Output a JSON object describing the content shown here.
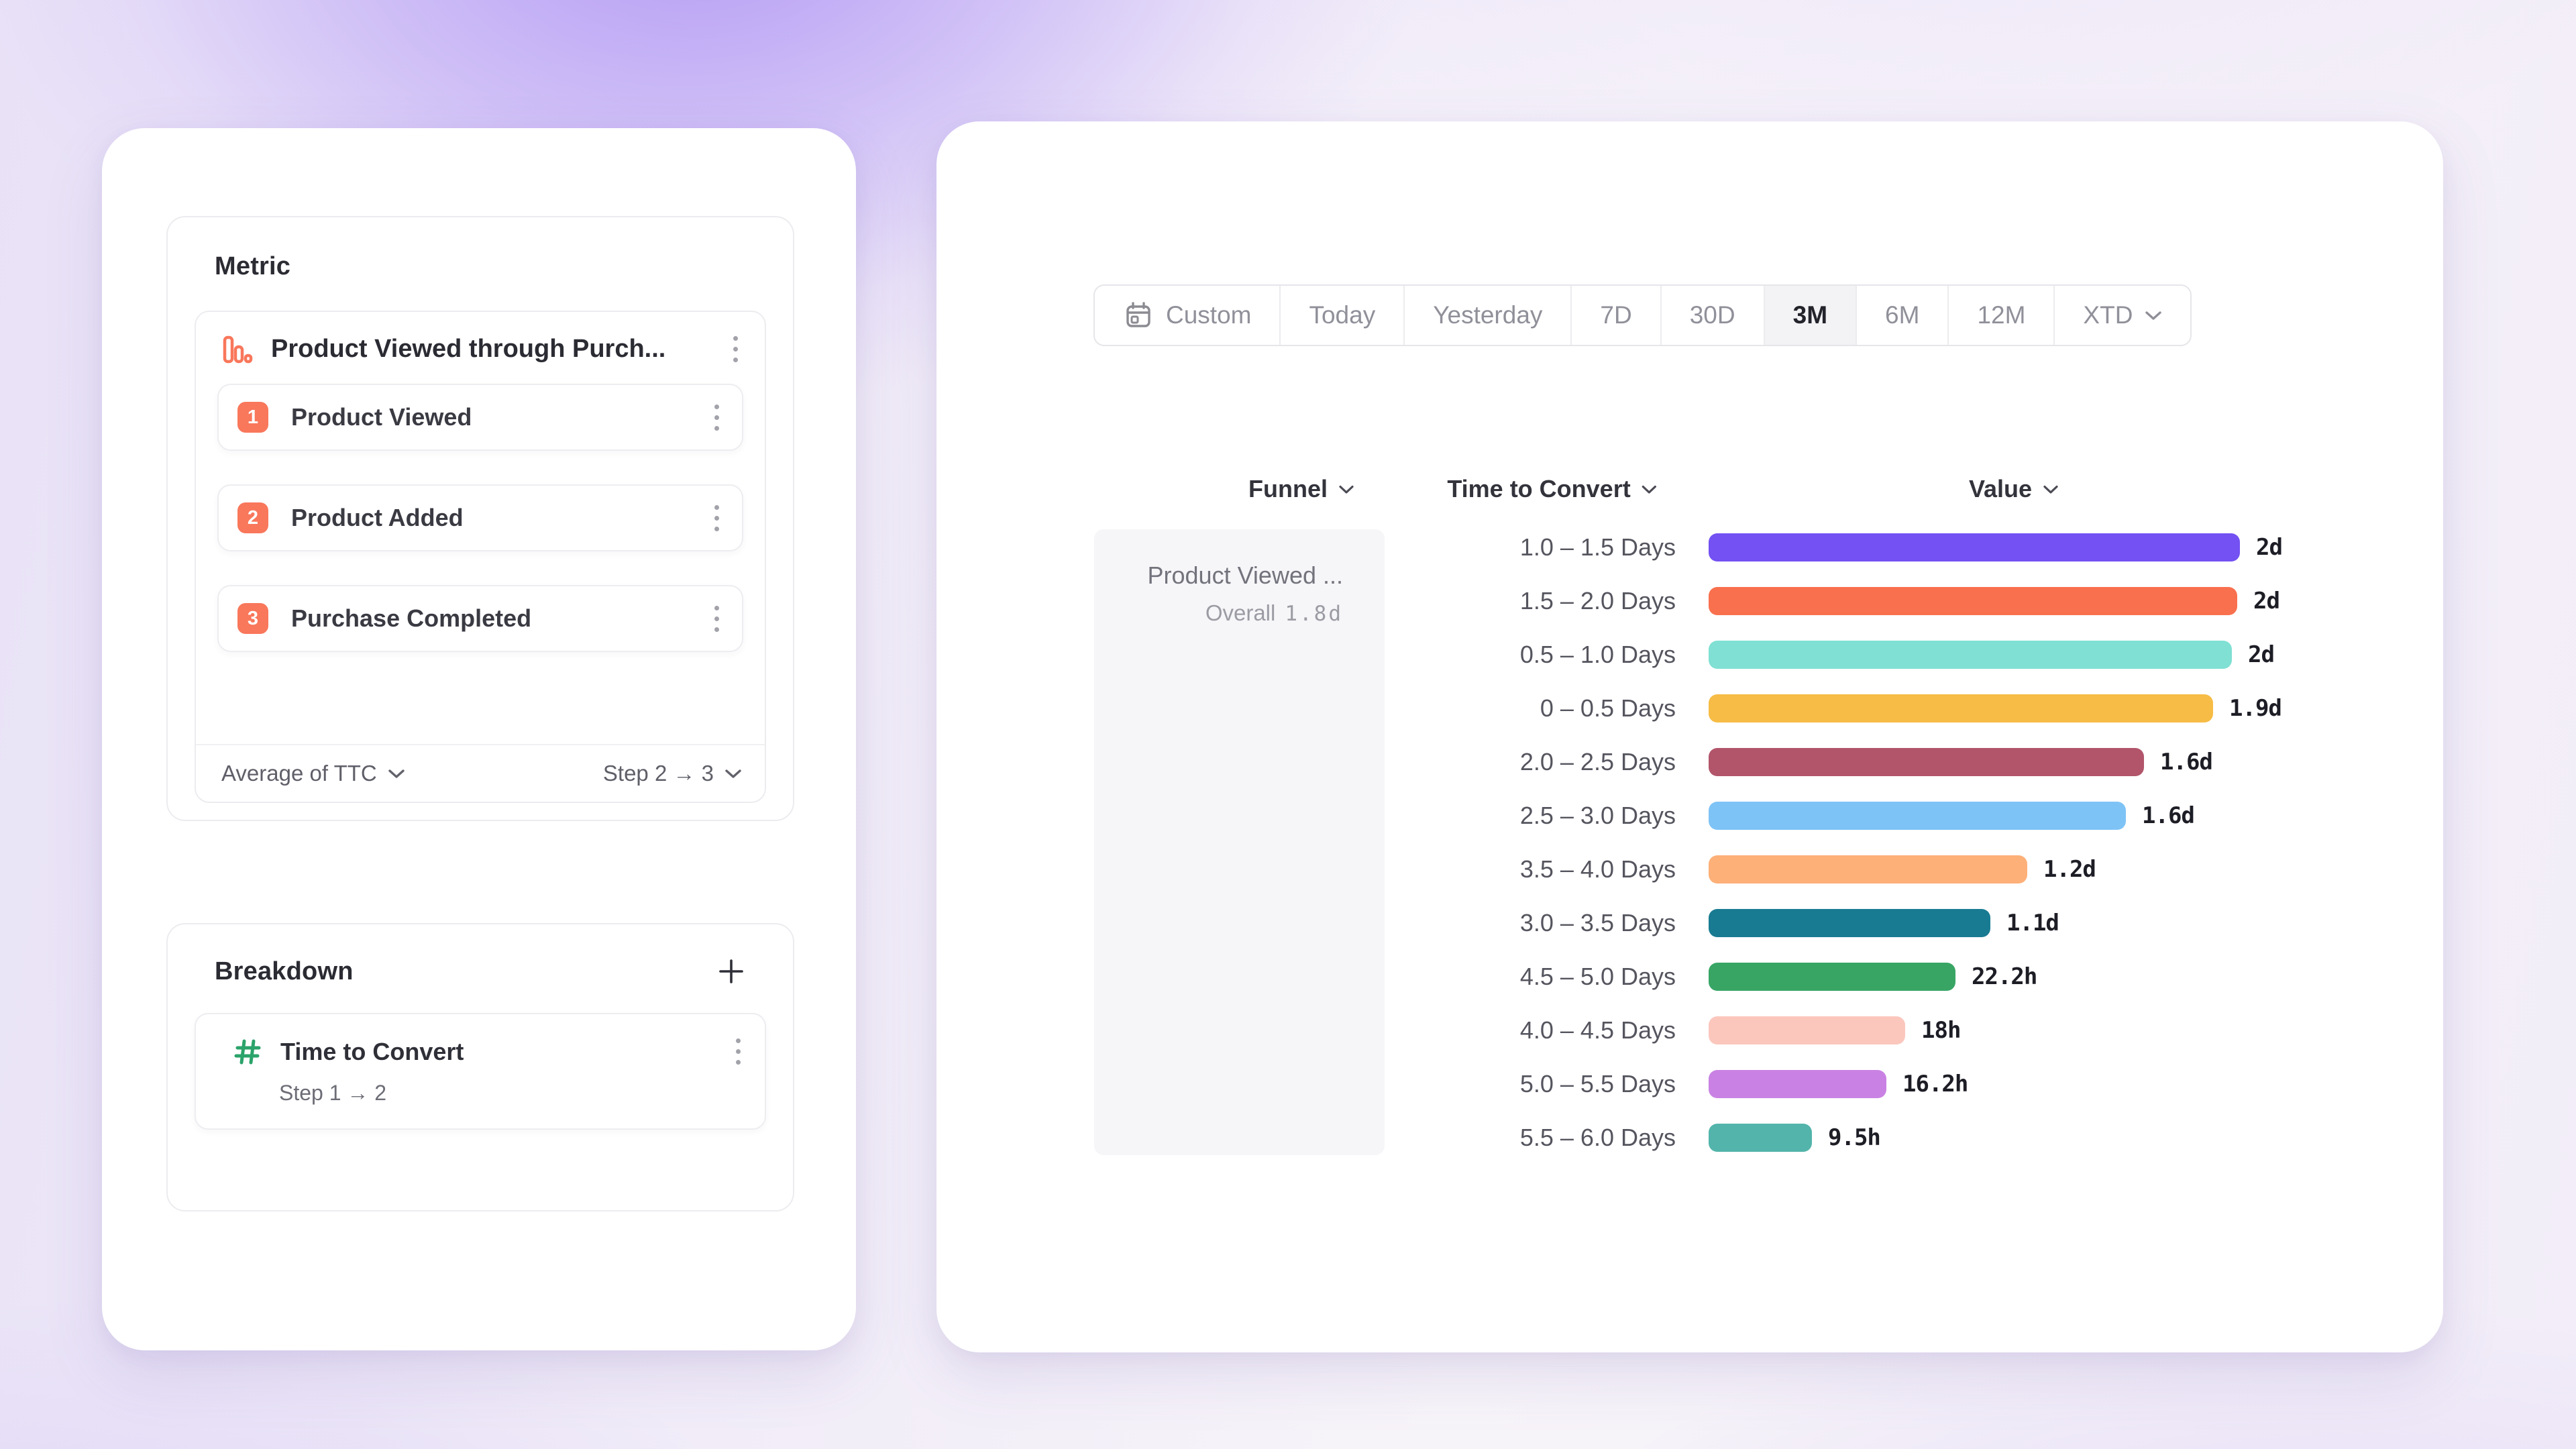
{
  "left_panel": {
    "metric": {
      "heading": "Metric",
      "funnel": {
        "title": "Product Viewed through Purch...",
        "steps": [
          {
            "num": "1",
            "label": "Product Viewed"
          },
          {
            "num": "2",
            "label": "Product Added"
          },
          {
            "num": "3",
            "label": "Purchase Completed"
          }
        ],
        "footer": {
          "measure": "Average of TTC",
          "step_range": "Step 2 → 3"
        }
      }
    },
    "breakdown": {
      "heading": "Breakdown",
      "item": {
        "title": "Time to Convert",
        "subtitle": "Step 1 → 2"
      }
    }
  },
  "right_panel": {
    "date_control": {
      "selected": "3M",
      "options": [
        {
          "label": "Custom",
          "icon": "calendar"
        },
        {
          "label": "Today"
        },
        {
          "label": "Yesterday"
        },
        {
          "label": "7D"
        },
        {
          "label": "30D"
        },
        {
          "label": "3M"
        },
        {
          "label": "6M"
        },
        {
          "label": "12M"
        },
        {
          "label": "XTD",
          "chevron": true
        }
      ]
    },
    "table": {
      "headers": {
        "funnel": "Funnel",
        "time_to_convert": "Time to Convert",
        "value": "Value"
      },
      "funnel_cell": {
        "title": "Product Viewed ...",
        "overall_label": "Overall",
        "overall_value": "1.8d"
      }
    }
  },
  "chart_data": {
    "type": "bar",
    "orientation": "horizontal",
    "title": "Time to Convert by Value",
    "categories": [
      "1.0 – 1.5 Days",
      "1.5 – 2.0 Days",
      "0.5 – 1.0 Days",
      "0 – 0.5 Days",
      "2.0 – 2.5 Days",
      "2.5 – 3.0 Days",
      "3.5 – 4.0 Days",
      "3.0 – 3.5 Days",
      "4.5 – 5.0 Days",
      "4.0 – 4.5 Days",
      "5.0 – 5.5 Days",
      "5.5 – 6.0 Days"
    ],
    "values_display": [
      "2d",
      "2d",
      "2d",
      "1.9d",
      "1.6d",
      "1.6d",
      "1.2d",
      "1.1d",
      "22.2h",
      "18h",
      "16.2h",
      "9.5h"
    ],
    "values_days": [
      2.0,
      1.99,
      1.97,
      1.9,
      1.64,
      1.57,
      1.2,
      1.06,
      0.93,
      0.74,
      0.67,
      0.39
    ],
    "max_days": 2.0,
    "xlim": [
      0,
      2.0
    ],
    "colors": [
      "#7351F2",
      "#F9704E",
      "#7FE0D3",
      "#F6BC45",
      "#B2556A",
      "#7EC3F6",
      "#FDB078",
      "#187B92",
      "#38A565",
      "#FBC7BD",
      "#C982E3",
      "#53B4AB"
    ]
  },
  "colors": {
    "step_badge": "#F9775B",
    "metric_icon": "#F9775B",
    "breakdown_icon": "#2BA36A",
    "selected_range_bg": "#F3F3F5",
    "card_bg": "#FFFFFF"
  }
}
